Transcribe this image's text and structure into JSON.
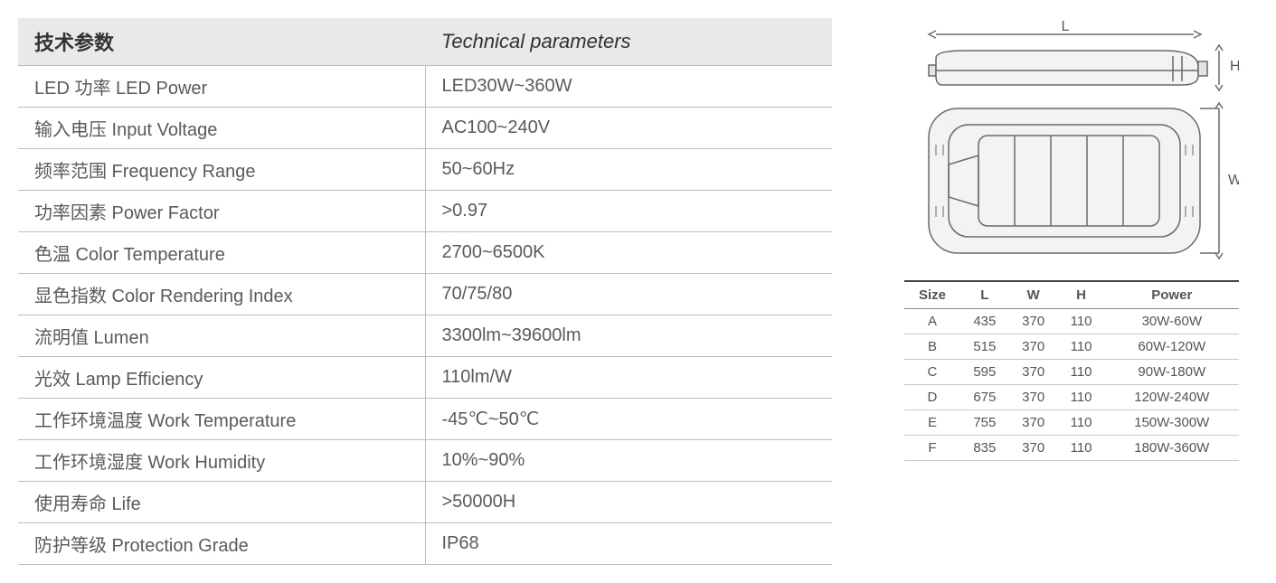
{
  "tech_table": {
    "header_cn": "技术参数",
    "header_en": "Technical parameters",
    "header_bg": "#e9e9e9",
    "border_color": "#bdbdbd",
    "text_color": "#5a5a5a",
    "fontsize_header": 22,
    "fontsize_body": 20,
    "rows": [
      {
        "label": "LED 功率 LED Power",
        "value": "LED30W~360W"
      },
      {
        "label": "输入电压 Input Voltage",
        "value": "AC100~240V"
      },
      {
        "label": "频率范围 Frequency Range",
        "value": "50~60Hz"
      },
      {
        "label": "功率因素 Power Factor",
        "value": ">0.97"
      },
      {
        "label": "色温 Color Temperature",
        "value": "2700~6500K"
      },
      {
        "label": "显色指数 Color Rendering Index",
        "value": "70/75/80"
      },
      {
        "label": "流明值 Lumen",
        "value": "3300lm~39600lm"
      },
      {
        "label": "光效 Lamp Efficiency",
        "value": "110lm/W"
      },
      {
        "label": "工作环境温度 Work Temperature",
        "value": "-45℃~50℃"
      },
      {
        "label": "工作环境湿度 Work Humidity",
        "value": "10%~90%"
      },
      {
        "label": "使用寿命 Life",
        "value": ">50000H"
      },
      {
        "label": "防护等级 Protection Grade",
        "value": "IP68"
      }
    ]
  },
  "diagram": {
    "labels": {
      "L": "L",
      "W": "W",
      "H": "H"
    },
    "stroke": "#6a6a6a",
    "fill": "#f3f3f3"
  },
  "size_table": {
    "columns": [
      "Size",
      "L",
      "W",
      "H",
      "Power"
    ],
    "border_top_color": "#444444",
    "header_border_color": "#888888",
    "row_border_color": "#c8c8c8",
    "fontsize": 15,
    "rows": [
      [
        "A",
        "435",
        "370",
        "110",
        "30W-60W"
      ],
      [
        "B",
        "515",
        "370",
        "110",
        "60W-120W"
      ],
      [
        "C",
        "595",
        "370",
        "110",
        "90W-180W"
      ],
      [
        "D",
        "675",
        "370",
        "110",
        "120W-240W"
      ],
      [
        "E",
        "755",
        "370",
        "110",
        "150W-300W"
      ],
      [
        "F",
        "835",
        "370",
        "110",
        "180W-360W"
      ]
    ]
  }
}
